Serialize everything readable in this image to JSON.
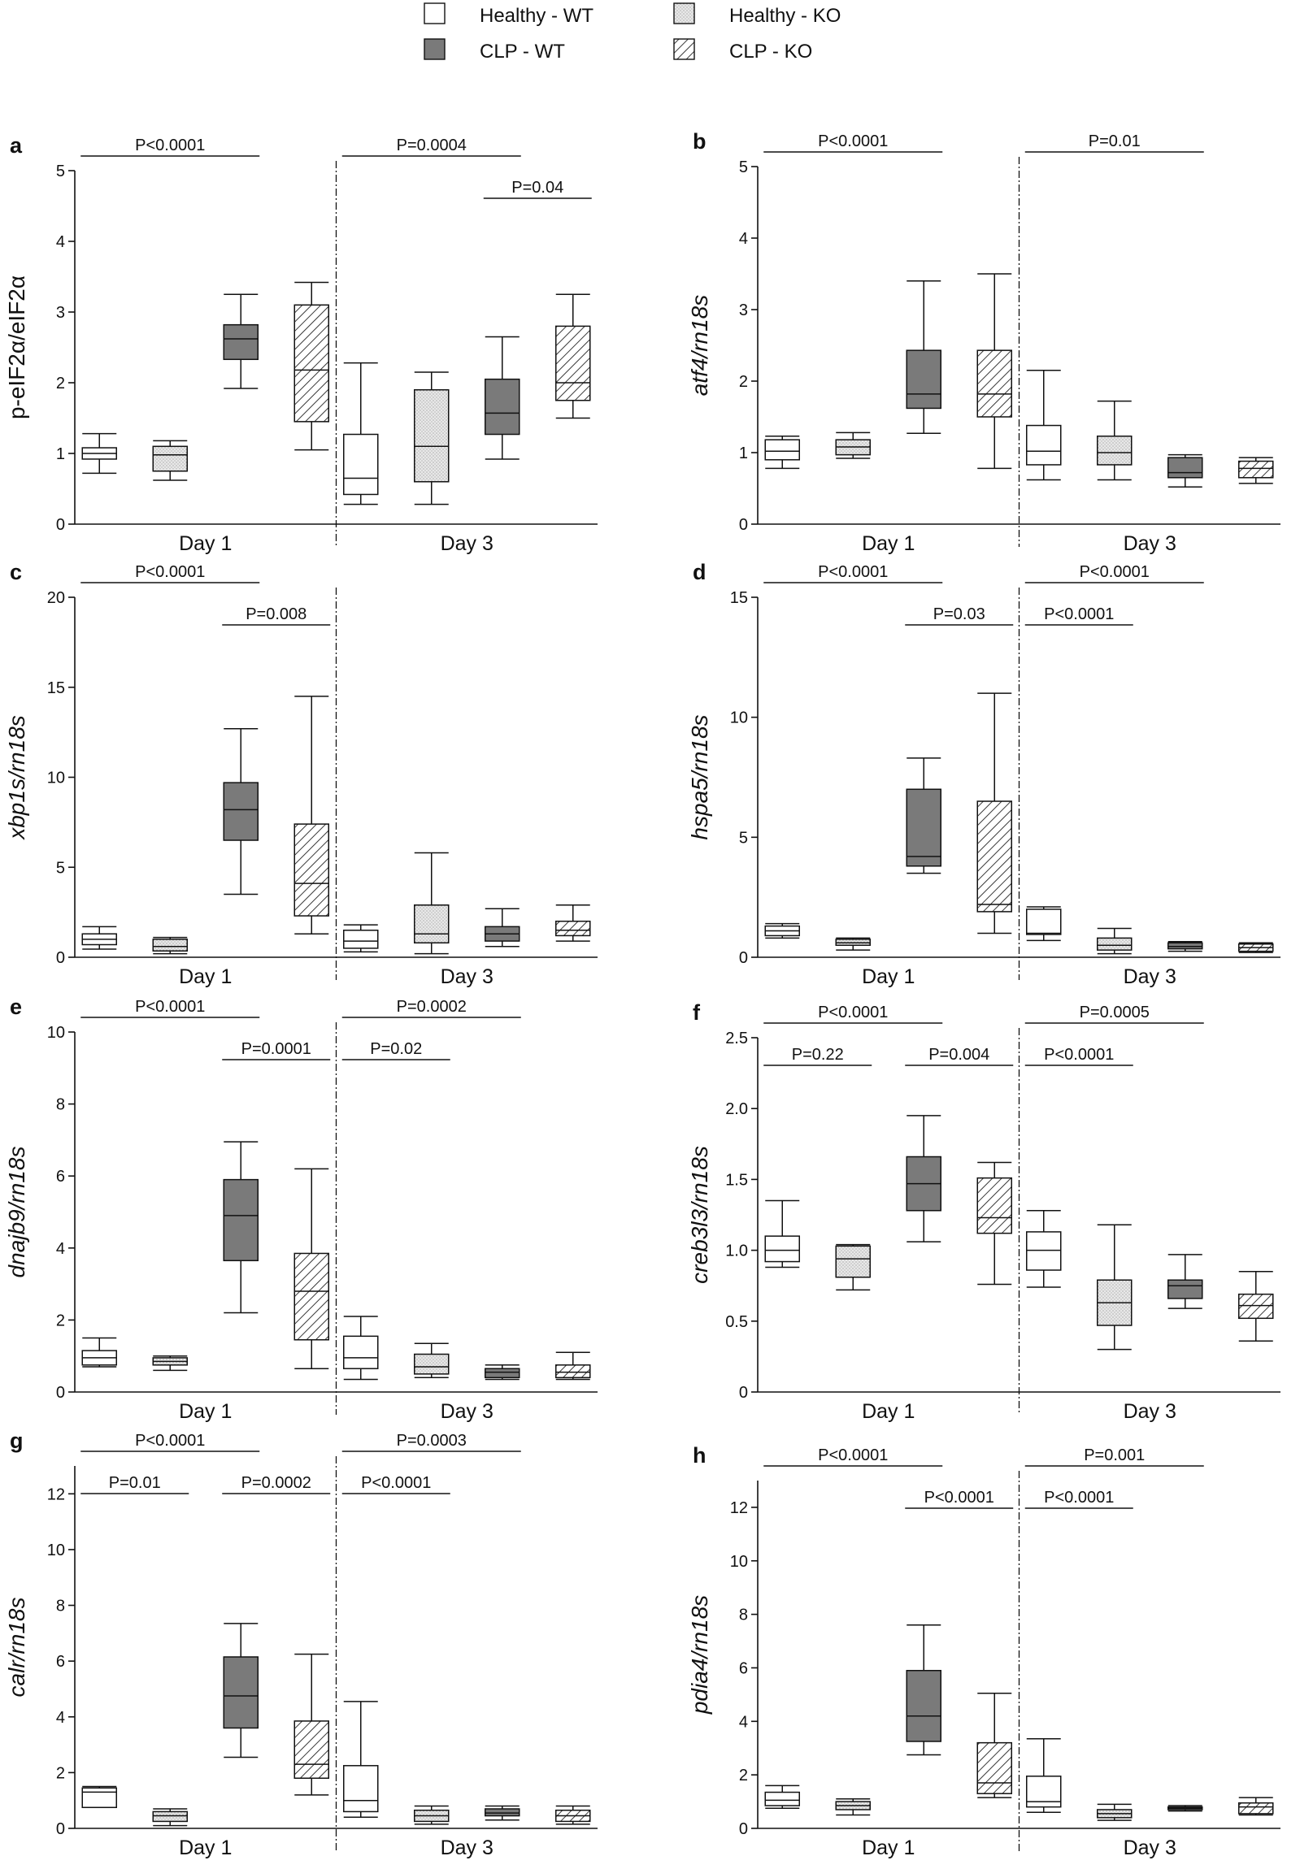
{
  "legend": [
    {
      "key": "healthy_wt",
      "label": "Healthy - WT"
    },
    {
      "key": "healthy_ko",
      "label": "Healthy - KO"
    },
    {
      "key": "clp_wt",
      "label": "CLP - WT"
    },
    {
      "key": "clp_ko",
      "label": "CLP - KO"
    }
  ],
  "styles": {
    "healthy_wt": {
      "fill": "#ffffff",
      "pattern": "none"
    },
    "healthy_ko": {
      "fill": "#e6e6e6",
      "pattern": "dots"
    },
    "clp_wt": {
      "fill": "#7a7a7a",
      "pattern": "none"
    },
    "clp_ko": {
      "fill": "#ffffff",
      "pattern": "hatch"
    }
  },
  "chart_data": [
    {
      "panel": "a",
      "type": "boxplot",
      "ylabel": "p-eIF2α/eIF2α",
      "ylabel_italic": false,
      "ylim": [
        0,
        5
      ],
      "yticks": [
        0,
        1,
        2,
        3,
        4,
        5
      ],
      "tick_labels": [
        "0",
        "1",
        "2",
        "3",
        "4",
        "5"
      ],
      "groups": [
        "Day 1",
        "Day 3"
      ],
      "series": [
        "Healthy - WT",
        "Healthy - KO",
        "CLP - WT",
        "CLP - KO"
      ],
      "boxes": [
        [
          [
            0.72,
            0.92,
            1.0,
            1.08,
            1.28
          ],
          [
            0.62,
            0.75,
            0.98,
            1.1,
            1.18
          ],
          [
            1.92,
            2.33,
            2.62,
            2.82,
            3.25
          ],
          [
            1.05,
            1.45,
            2.18,
            3.1,
            3.42
          ]
        ],
        [
          [
            0.28,
            0.42,
            0.65,
            1.27,
            2.28
          ],
          [
            0.28,
            0.6,
            1.1,
            1.9,
            2.15
          ],
          [
            0.92,
            1.27,
            1.57,
            2.05,
            2.65
          ],
          [
            1.5,
            1.75,
            2.0,
            2.8,
            3.25
          ]
        ]
      ],
      "comparisons": [
        {
          "label": "P<0.0001",
          "group": 0,
          "from": 0,
          "to": 2,
          "level": 0
        },
        {
          "label": "P=0.0004",
          "group": 1,
          "from": 0,
          "to": 2,
          "level": 0
        },
        {
          "label": "P=0.04",
          "group": 1,
          "from": 2,
          "to": 3,
          "level": 1
        }
      ]
    },
    {
      "panel": "b",
      "type": "boxplot",
      "ylabel": "atf4/rn18s",
      "ylabel_italic": true,
      "ylim": [
        0,
        5
      ],
      "yticks": [
        0,
        1,
        2,
        3,
        4,
        5
      ],
      "tick_labels": [
        "0",
        "1",
        "2",
        "3",
        "4",
        "5"
      ],
      "groups": [
        "Day 1",
        "Day 3"
      ],
      "series": [
        "Healthy - WT",
        "Healthy - KO",
        "CLP - WT",
        "CLP - KO"
      ],
      "boxes": [
        [
          [
            0.78,
            0.9,
            1.02,
            1.18,
            1.23
          ],
          [
            0.92,
            0.97,
            1.08,
            1.18,
            1.28
          ],
          [
            1.27,
            1.62,
            1.82,
            2.43,
            3.4
          ],
          [
            0.78,
            1.5,
            1.82,
            2.43,
            3.5
          ]
        ],
        [
          [
            0.62,
            0.83,
            1.02,
            1.38,
            2.15
          ],
          [
            0.62,
            0.83,
            1.0,
            1.23,
            1.72
          ],
          [
            0.52,
            0.65,
            0.72,
            0.93,
            0.97
          ],
          [
            0.57,
            0.65,
            0.78,
            0.88,
            0.93
          ]
        ]
      ],
      "comparisons": [
        {
          "label": "P<0.0001",
          "group": 0,
          "from": 0,
          "to": 2,
          "level": 0
        },
        {
          "label": "P=0.01",
          "group": 1,
          "from": 0,
          "to": 2,
          "level": 0
        }
      ]
    },
    {
      "panel": "c",
      "type": "boxplot",
      "ylabel": "xbp1s/rn18s",
      "ylabel_italic": true,
      "ylim": [
        0,
        20
      ],
      "yticks": [
        0,
        5,
        10,
        15,
        20
      ],
      "tick_labels": [
        "0",
        "5",
        "10",
        "15",
        "20"
      ],
      "groups": [
        "Day 1",
        "Day 3"
      ],
      "series": [
        "Healthy - WT",
        "Healthy - KO",
        "CLP - WT",
        "CLP - KO"
      ],
      "boxes": [
        [
          [
            0.45,
            0.7,
            1.0,
            1.3,
            1.7
          ],
          [
            0.2,
            0.35,
            0.6,
            1.0,
            1.1
          ],
          [
            3.5,
            6.5,
            8.2,
            9.7,
            12.7
          ],
          [
            1.3,
            2.3,
            4.1,
            7.4,
            14.5
          ]
        ],
        [
          [
            0.3,
            0.5,
            0.9,
            1.5,
            1.8
          ],
          [
            0.2,
            0.8,
            1.3,
            2.9,
            5.8
          ],
          [
            0.6,
            0.9,
            1.3,
            1.7,
            2.7
          ],
          [
            0.9,
            1.2,
            1.5,
            2.0,
            2.9
          ]
        ]
      ],
      "comparisons": [
        {
          "label": "P<0.0001",
          "group": 0,
          "from": 0,
          "to": 2,
          "level": 0
        },
        {
          "label": "P=0.008",
          "group": 0,
          "from": 2,
          "to": 3,
          "level": 1
        }
      ]
    },
    {
      "panel": "d",
      "type": "boxplot",
      "ylabel": "hspa5/rn18s",
      "ylabel_italic": true,
      "ylim": [
        0,
        15
      ],
      "yticks": [
        0,
        5,
        10,
        15
      ],
      "tick_labels": [
        "0",
        "5",
        "10",
        "15"
      ],
      "groups": [
        "Day 1",
        "Day 3"
      ],
      "series": [
        "Healthy - WT",
        "Healthy - KO",
        "CLP - WT",
        "CLP - KO"
      ],
      "boxes": [
        [
          [
            0.8,
            0.9,
            1.1,
            1.3,
            1.4
          ],
          [
            0.3,
            0.5,
            0.6,
            0.75,
            0.8
          ],
          [
            3.5,
            3.8,
            4.2,
            7.0,
            8.3
          ],
          [
            1.0,
            1.9,
            2.2,
            6.5,
            11.0
          ]
        ],
        [
          [
            0.7,
            0.95,
            1.0,
            2.0,
            2.1
          ],
          [
            0.15,
            0.3,
            0.5,
            0.8,
            1.2
          ],
          [
            0.25,
            0.35,
            0.45,
            0.6,
            0.65
          ],
          [
            0.2,
            0.25,
            0.4,
            0.55,
            0.6
          ]
        ]
      ],
      "comparisons": [
        {
          "label": "P<0.0001",
          "group": 0,
          "from": 0,
          "to": 2,
          "level": 0
        },
        {
          "label": "P=0.03",
          "group": 0,
          "from": 2,
          "to": 3,
          "level": 1
        },
        {
          "label": "P<0.0001",
          "group": 1,
          "from": 0,
          "to": 2,
          "level": 0
        },
        {
          "label": "P<0.0001",
          "group": 1,
          "from": 0,
          "to": 1,
          "level": 1
        }
      ]
    },
    {
      "panel": "e",
      "type": "boxplot",
      "ylabel": "dnajb9/rn18s",
      "ylabel_italic": true,
      "ylim": [
        0,
        10
      ],
      "yticks": [
        0,
        2,
        4,
        6,
        8,
        10
      ],
      "tick_labels": [
        "0",
        "2",
        "4",
        "6",
        "8",
        "10"
      ],
      "groups": [
        "Day 1",
        "Day 3"
      ],
      "series": [
        "Healthy - WT",
        "Healthy - KO",
        "CLP - WT",
        "CLP - KO"
      ],
      "boxes": [
        [
          [
            0.7,
            0.75,
            0.95,
            1.15,
            1.5
          ],
          [
            0.6,
            0.75,
            0.85,
            0.95,
            1.0
          ],
          [
            2.2,
            3.65,
            4.9,
            5.9,
            6.95
          ],
          [
            0.65,
            1.45,
            2.8,
            3.85,
            6.2
          ]
        ],
        [
          [
            0.35,
            0.65,
            0.95,
            1.55,
            2.1
          ],
          [
            0.4,
            0.5,
            0.7,
            1.05,
            1.35
          ],
          [
            0.35,
            0.4,
            0.55,
            0.65,
            0.75
          ],
          [
            0.35,
            0.4,
            0.55,
            0.75,
            1.1
          ]
        ]
      ],
      "comparisons": [
        {
          "label": "P<0.0001",
          "group": 0,
          "from": 0,
          "to": 2,
          "level": 0
        },
        {
          "label": "P=0.0001",
          "group": 0,
          "from": 2,
          "to": 3,
          "level": 1
        },
        {
          "label": "P=0.0002",
          "group": 1,
          "from": 0,
          "to": 2,
          "level": 0
        },
        {
          "label": "P=0.02",
          "group": 1,
          "from": 0,
          "to": 1,
          "level": 1
        }
      ]
    },
    {
      "panel": "f",
      "type": "boxplot",
      "ylabel": "creb3l3/rn18s",
      "ylabel_italic": true,
      "ylim": [
        0,
        2.5
      ],
      "yticks": [
        0,
        0.5,
        1.0,
        1.5,
        2.0,
        2.5
      ],
      "tick_labels": [
        "0",
        "0.5",
        "1.0",
        "1.5",
        "2.0",
        "2.5"
      ],
      "groups": [
        "Day 1",
        "Day 3"
      ],
      "series": [
        "Healthy - WT",
        "Healthy - KO",
        "CLP - WT",
        "CLP - KO"
      ],
      "boxes": [
        [
          [
            0.88,
            0.92,
            1.0,
            1.1,
            1.35
          ],
          [
            0.72,
            0.81,
            0.94,
            1.03,
            1.04
          ],
          [
            1.06,
            1.28,
            1.47,
            1.66,
            1.95
          ],
          [
            0.76,
            1.12,
            1.23,
            1.51,
            1.62
          ]
        ],
        [
          [
            0.74,
            0.86,
            1.0,
            1.13,
            1.28
          ],
          [
            0.3,
            0.47,
            0.63,
            0.79,
            1.18
          ],
          [
            0.59,
            0.66,
            0.75,
            0.79,
            0.97
          ],
          [
            0.36,
            0.52,
            0.61,
            0.69,
            0.85
          ]
        ]
      ],
      "comparisons": [
        {
          "label": "P<0.0001",
          "group": 0,
          "from": 0,
          "to": 2,
          "level": 0
        },
        {
          "label": "P=0.22",
          "group": 0,
          "from": 0,
          "to": 1,
          "level": 1
        },
        {
          "label": "P=0.004",
          "group": 0,
          "from": 2,
          "to": 3,
          "level": 1
        },
        {
          "label": "P=0.0005",
          "group": 1,
          "from": 0,
          "to": 2,
          "level": 0
        },
        {
          "label": "P<0.0001",
          "group": 1,
          "from": 0,
          "to": 1,
          "level": 1
        }
      ]
    },
    {
      "panel": "g",
      "type": "boxplot",
      "ylabel": "calr/rn18s",
      "ylabel_italic": true,
      "ylim": [
        0,
        13
      ],
      "yticks": [
        0,
        2,
        4,
        6,
        8,
        10,
        12
      ],
      "tick_labels": [
        "0",
        "2",
        "4",
        "6",
        "8",
        "10",
        "12"
      ],
      "groups": [
        "Day 1",
        "Day 3"
      ],
      "series": [
        "Healthy - WT",
        "Healthy - KO",
        "CLP - WT",
        "CLP - KO"
      ],
      "boxes": [
        [
          [
            0.75,
            0.75,
            1.3,
            1.45,
            1.5
          ],
          [
            0.1,
            0.25,
            0.45,
            0.6,
            0.7
          ],
          [
            2.55,
            3.6,
            4.75,
            6.15,
            7.35
          ],
          [
            1.2,
            1.8,
            2.3,
            3.85,
            6.25
          ]
        ],
        [
          [
            0.4,
            0.6,
            1.0,
            2.25,
            4.55
          ],
          [
            0.15,
            0.25,
            0.45,
            0.65,
            0.8
          ],
          [
            0.3,
            0.45,
            0.55,
            0.7,
            0.8
          ],
          [
            0.15,
            0.25,
            0.45,
            0.65,
            0.8
          ]
        ]
      ],
      "comparisons": [
        {
          "label": "P<0.0001",
          "group": 0,
          "from": 0,
          "to": 2,
          "level": 0
        },
        {
          "label": "P=0.01",
          "group": 0,
          "from": 0,
          "to": 1,
          "level": 1
        },
        {
          "label": "P=0.0002",
          "group": 0,
          "from": 2,
          "to": 3,
          "level": 1
        },
        {
          "label": "P=0.0003",
          "group": 1,
          "from": 0,
          "to": 2,
          "level": 0
        },
        {
          "label": "P<0.0001",
          "group": 1,
          "from": 0,
          "to": 1,
          "level": 1
        }
      ]
    },
    {
      "panel": "h",
      "type": "boxplot",
      "ylabel": "pdia4/rn18s",
      "ylabel_italic": true,
      "ylim": [
        0,
        13
      ],
      "yticks": [
        0,
        2,
        4,
        6,
        8,
        10,
        12
      ],
      "tick_labels": [
        "0",
        "2",
        "4",
        "6",
        "8",
        "10",
        "12"
      ],
      "groups": [
        "Day 1",
        "Day 3"
      ],
      "series": [
        "Healthy - WT",
        "Healthy - KO",
        "CLP - WT",
        "CLP - KO"
      ],
      "boxes": [
        [
          [
            0.75,
            0.85,
            1.05,
            1.35,
            1.6
          ],
          [
            0.5,
            0.7,
            0.85,
            1.0,
            1.1
          ],
          [
            2.75,
            3.25,
            4.2,
            5.9,
            7.6
          ],
          [
            1.15,
            1.3,
            1.7,
            3.2,
            5.05
          ]
        ],
        [
          [
            0.6,
            0.8,
            1.0,
            1.95,
            3.35
          ],
          [
            0.3,
            0.4,
            0.55,
            0.7,
            0.9
          ],
          [
            0.65,
            0.7,
            0.75,
            0.8,
            0.85
          ],
          [
            0.5,
            0.55,
            0.8,
            0.95,
            1.15
          ]
        ]
      ],
      "comparisons": [
        {
          "label": "P<0.0001",
          "group": 0,
          "from": 0,
          "to": 2,
          "level": 0
        },
        {
          "label": "P<0.0001",
          "group": 0,
          "from": 2,
          "to": 3,
          "level": 1
        },
        {
          "label": "P=0.001",
          "group": 1,
          "from": 0,
          "to": 2,
          "level": 0
        },
        {
          "label": "P<0.0001",
          "group": 1,
          "from": 0,
          "to": 1,
          "level": 1
        }
      ]
    }
  ]
}
